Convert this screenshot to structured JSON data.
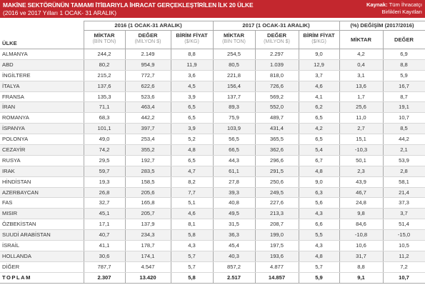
{
  "header": {
    "title": "MAKİNE SEKTÖRÜNÜN TAMAMI İTİBARIYLA İHRACAT GERÇEKLEŞTİRİLEN İLK 20 ÜLKE",
    "subtitle": "(2016 ve 2017 Yılları 1 OCAK- 31 ARALIK)",
    "source_label": "Kaynak:",
    "source_value": "Tüm İhracatçı",
    "source_value2": "Birlikleri Kayıtları",
    "accent_color": "#c3272e"
  },
  "columns": {
    "country": "ÜLKE",
    "group_2016": "2016 (1 OCAK-31 ARALIK)",
    "group_2017": "2017 (1 OCAK-31 ARALIK)",
    "group_change": "(%) DEĞİŞİM (2017/2016)",
    "miktar": "MİKTAR",
    "miktar_unit": "(BİN TON)",
    "deger": "DEĞER",
    "deger_unit": "(MİLYON $)",
    "birim": "BİRİM FİYAT",
    "birim_unit": "($/KG)",
    "change_miktar": "MİKTAR",
    "change_deger": "DEĞER"
  },
  "rows": [
    {
      "country": "ALMANYA",
      "m16": "244,2",
      "d16": "2.149",
      "b16": "8,8",
      "m17": "254,5",
      "d17": "2.297",
      "b17": "9,0",
      "cm": "4,2",
      "cd": "6,9"
    },
    {
      "country": "ABD",
      "m16": "80,2",
      "d16": "954,9",
      "b16": "11,9",
      "m17": "80,5",
      "d17": "1.039",
      "b17": "12,9",
      "cm": "0,4",
      "cd": "8,8"
    },
    {
      "country": "İNGİLTERE",
      "m16": "215,2",
      "d16": "772,7",
      "b16": "3,6",
      "m17": "221,8",
      "d17": "818,0",
      "b17": "3,7",
      "cm": "3,1",
      "cd": "5,9"
    },
    {
      "country": "İTALYA",
      "m16": "137,6",
      "d16": "622,6",
      "b16": "4,5",
      "m17": "156,4",
      "d17": "726,6",
      "b17": "4,6",
      "cm": "13,6",
      "cd": "16,7"
    },
    {
      "country": "FRANSA",
      "m16": "135,3",
      "d16": "523,6",
      "b16": "3,9",
      "m17": "137,7",
      "d17": "569,2",
      "b17": "4,1",
      "cm": "1,7",
      "cd": "8,7"
    },
    {
      "country": "İRAN",
      "m16": "71,1",
      "d16": "463,4",
      "b16": "6,5",
      "m17": "89,3",
      "d17": "552,0",
      "b17": "6,2",
      "cm": "25,6",
      "cd": "19,1"
    },
    {
      "country": "ROMANYA",
      "m16": "68,3",
      "d16": "442,2",
      "b16": "6,5",
      "m17": "75,9",
      "d17": "489,7",
      "b17": "6,5",
      "cm": "11,0",
      "cd": "10,7"
    },
    {
      "country": "İSPANYA",
      "m16": "101,1",
      "d16": "397,7",
      "b16": "3,9",
      "m17": "103,9",
      "d17": "431,4",
      "b17": "4,2",
      "cm": "2,7",
      "cd": "8,5"
    },
    {
      "country": "POLONYA",
      "m16": "49,0",
      "d16": "253,4",
      "b16": "5,2",
      "m17": "56,5",
      "d17": "365,5",
      "b17": "6,5",
      "cm": "15,1",
      "cd": "44,2"
    },
    {
      "country": "CEZAYİR",
      "m16": "74,2",
      "d16": "355,2",
      "b16": "4,8",
      "m17": "66,5",
      "d17": "362,6",
      "b17": "5,4",
      "cm": "-10,3",
      "cd": "2,1"
    },
    {
      "country": "RUSYA",
      "m16": "29,5",
      "d16": "192,7",
      "b16": "6,5",
      "m17": "44,3",
      "d17": "296,6",
      "b17": "6,7",
      "cm": "50,1",
      "cd": "53,9"
    },
    {
      "country": "IRAK",
      "m16": "59,7",
      "d16": "283,5",
      "b16": "4,7",
      "m17": "61,1",
      "d17": "291,5",
      "b17": "4,8",
      "cm": "2,3",
      "cd": "2,8"
    },
    {
      "country": "HİNDİSTAN",
      "m16": "19,3",
      "d16": "158,5",
      "b16": "8,2",
      "m17": "27,8",
      "d17": "250,6",
      "b17": "9,0",
      "cm": "43,9",
      "cd": "58,1"
    },
    {
      "country": "AZERBAYCAN",
      "m16": "26,8",
      "d16": "205,6",
      "b16": "7,7",
      "m17": "39,3",
      "d17": "249,5",
      "b17": "6,3",
      "cm": "46,7",
      "cd": "21,4"
    },
    {
      "country": "FAS",
      "m16": "32,7",
      "d16": "165,8",
      "b16": "5,1",
      "m17": "40,8",
      "d17": "227,6",
      "b17": "5,6",
      "cm": "24,8",
      "cd": "37,3"
    },
    {
      "country": "MISIR",
      "m16": "45,1",
      "d16": "205,7",
      "b16": "4,6",
      "m17": "49,5",
      "d17": "213,3",
      "b17": "4,3",
      "cm": "9,8",
      "cd": "3,7"
    },
    {
      "country": "ÖZBEKİSTAN",
      "m16": "17,1",
      "d16": "137,9",
      "b16": "8,1",
      "m17": "31,5",
      "d17": "208,7",
      "b17": "6,6",
      "cm": "84,6",
      "cd": "51,4"
    },
    {
      "country": "SUUDİ ARABİSTAN",
      "m16": "40,7",
      "d16": "234,3",
      "b16": "5,8",
      "m17": "36,3",
      "d17": "199,0",
      "b17": "5,5",
      "cm": "-10,8",
      "cd": "-15,0"
    },
    {
      "country": "İSRAİL",
      "m16": "41,1",
      "d16": "178,7",
      "b16": "4,3",
      "m17": "45,4",
      "d17": "197,5",
      "b17": "4,3",
      "cm": "10,6",
      "cd": "10,5"
    },
    {
      "country": "HOLLANDA",
      "m16": "30,6",
      "d16": "174,1",
      "b16": "5,7",
      "m17": "40,3",
      "d17": "193,6",
      "b17": "4,8",
      "cm": "31,7",
      "cd": "11,2"
    },
    {
      "country": "DİĞER",
      "m16": "787,7",
      "d16": "4.547",
      "b16": "5,7",
      "m17": "857,2",
      "d17": "4.877",
      "b17": "5,7",
      "cm": "8,8",
      "cd": "7,2"
    }
  ],
  "total": {
    "country": "TOPLAM",
    "m16": "2.307",
    "d16": "13.420",
    "b16": "5,8",
    "m17": "2.517",
    "d17": "14.857",
    "b17": "5,9",
    "cm": "9,1",
    "cd": "10,7"
  }
}
